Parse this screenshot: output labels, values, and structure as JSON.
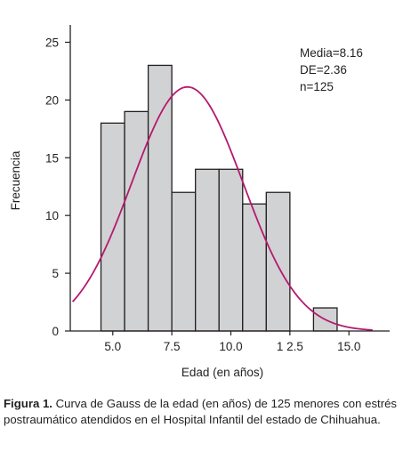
{
  "chart_data": {
    "type": "bar",
    "subtype": "histogram with fitted normal curve",
    "bin_width": 1,
    "bins": [
      {
        "x0": 4.5,
        "x1": 5.5,
        "count": 18
      },
      {
        "x0": 5.5,
        "x1": 6.5,
        "count": 19
      },
      {
        "x0": 6.5,
        "x1": 7.5,
        "count": 23
      },
      {
        "x0": 7.5,
        "x1": 8.5,
        "count": 12
      },
      {
        "x0": 8.5,
        "x1": 9.5,
        "count": 14
      },
      {
        "x0": 9.5,
        "x1": 10.5,
        "count": 14
      },
      {
        "x0": 10.5,
        "x1": 11.5,
        "count": 11
      },
      {
        "x0": 11.5,
        "x1": 12.5,
        "count": 12
      },
      {
        "x0": 13.5,
        "x1": 14.5,
        "count": 2
      }
    ],
    "curve": {
      "mean": 8.16,
      "sd": 2.36,
      "n": 125,
      "x_range": [
        3.3,
        16.0
      ]
    },
    "xlabel": "Edad (en años)",
    "ylabel": "Frecuencia",
    "xlim": [
      3.2,
      16.8
    ],
    "ylim": [
      0,
      26.5
    ],
    "xticks": [
      5.0,
      7.5,
      10.0,
      12.5,
      15.0
    ],
    "xtick_labels": [
      "5.0",
      "7.5",
      "10.0",
      "1 2.5",
      "15.0"
    ],
    "yticks": [
      0,
      5,
      10,
      15,
      20,
      25
    ],
    "ytick_labels": [
      "0",
      "5",
      "10",
      "15",
      "20",
      "25"
    ],
    "stats_text": [
      "Media=8.16",
      "DE=2.36",
      "n=125"
    ],
    "colors": {
      "bar_fill": "#d1d2d4",
      "bar_stroke": "#231f20",
      "curve": "#b5196e",
      "axis": "#231f20"
    }
  },
  "caption": {
    "label": "Figura 1.",
    "text": " Curva de Gauss de la edad (en años) de 125 menores con estrés postraumático atendidos en el Hospital Infantil del estado de Chihuahua."
  }
}
